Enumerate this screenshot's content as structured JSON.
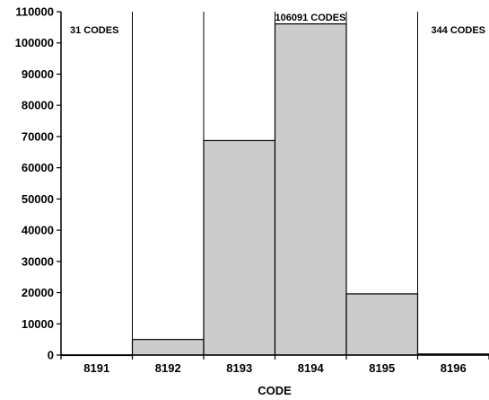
{
  "chart_data": {
    "type": "bar",
    "title": "",
    "xlabel": "CODE",
    "ylabel": "",
    "categories": [
      "8191",
      "8192",
      "8193",
      "8194",
      "8195",
      "8196"
    ],
    "values": [
      31,
      5000,
      68700,
      106091,
      19600,
      344
    ],
    "ylim": [
      0,
      110000
    ],
    "yticks": [
      "0",
      "10000",
      "20000",
      "30000",
      "40000",
      "50000",
      "60000",
      "70000",
      "80000",
      "90000",
      "100000",
      "110000"
    ],
    "annotations": [
      "31 CODES",
      "106091 CODES",
      "344 CODES"
    ],
    "grid": false,
    "bar_color": "#cccccc",
    "bar_edge_color": "#000000"
  }
}
